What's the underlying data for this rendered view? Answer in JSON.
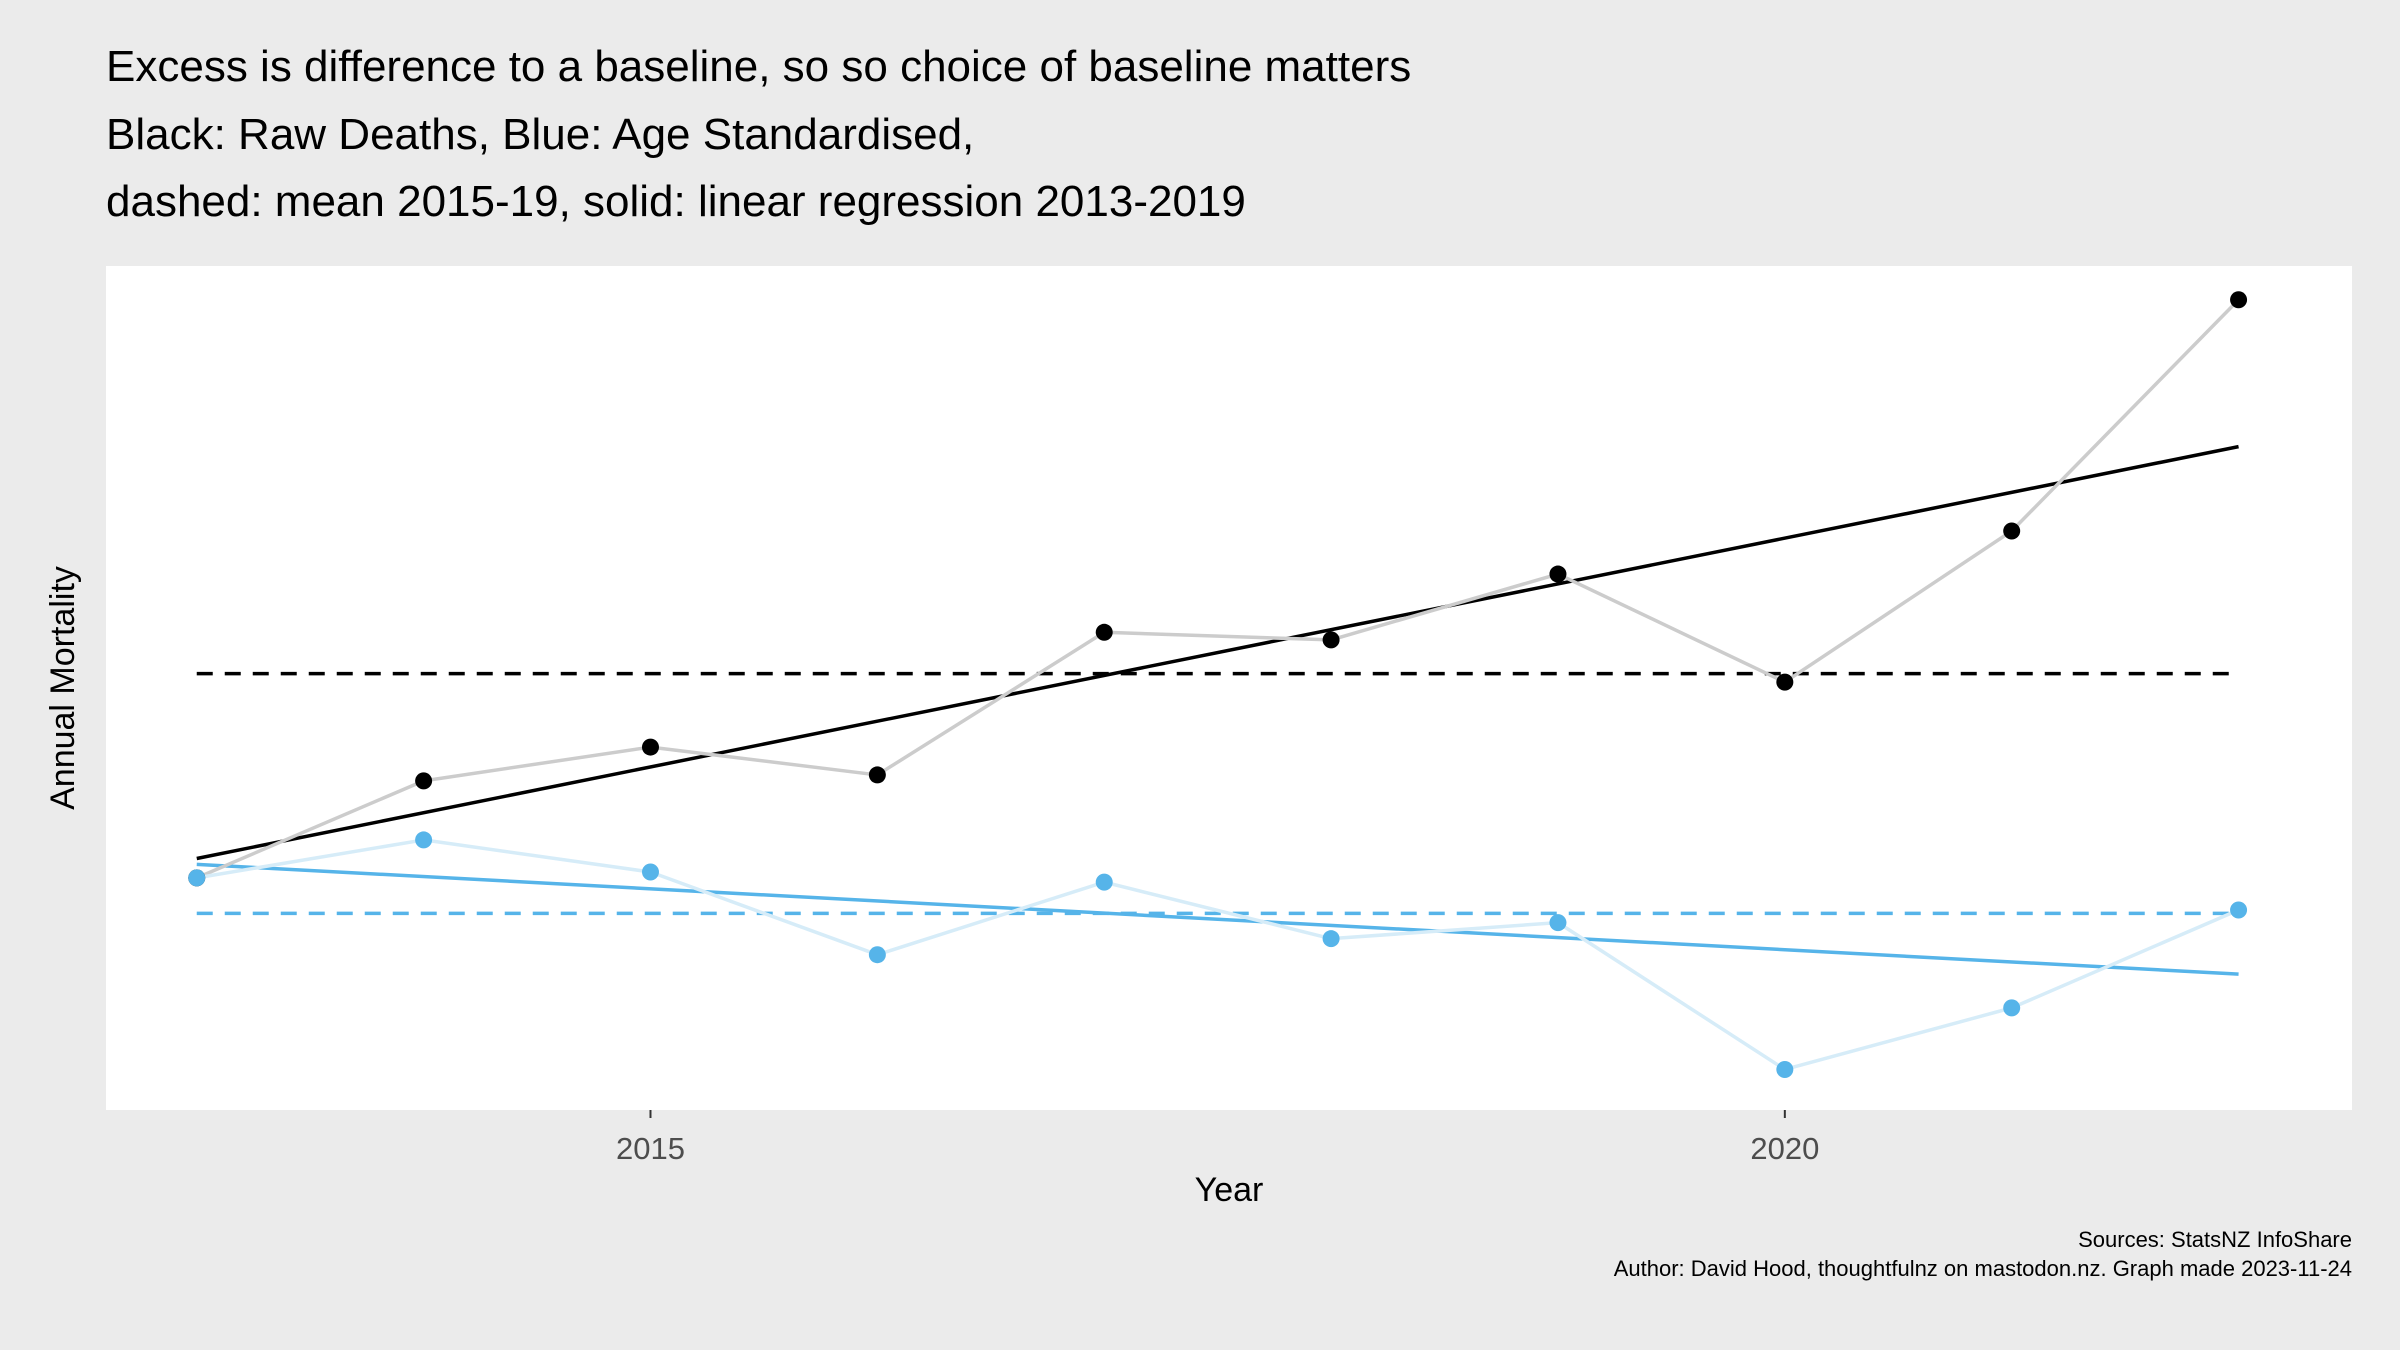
{
  "title_lines": [
    "Excess is difference to a baseline, so so choice of baseline matters",
    "Black: Raw Deaths, Blue: Age Standardised,",
    "dashed: mean 2015-19, solid: linear regression 2013-2019"
  ],
  "caption": {
    "sources": "Sources: StatsNZ InfoShare",
    "author": "Author: David Hood, thoughtfulnz on mastodon.nz. Graph made  2023-11-24"
  },
  "colors": {
    "background": "#ebebeb",
    "panel": "#ffffff",
    "raw_points": "#000000",
    "raw_line": "#cccccc",
    "age_points": "#56b4e9",
    "age_line": "#d6ecf8",
    "raw_baseline": "#000000",
    "age_baseline": "#56b4e9"
  },
  "chart_data": {
    "type": "line",
    "xlabel": "Year",
    "ylabel": "Annual Mortality",
    "x_ticks": [
      2015,
      2020
    ],
    "xlim": [
      2012.6,
      2022.5
    ],
    "ylim": [
      0,
      100
    ],
    "y_tick_labels_shown": false,
    "grid": false,
    "series": [
      {
        "x": [
          2013,
          2014,
          2015,
          2016,
          2017,
          2018,
          2019,
          2020,
          2021,
          2022
        ],
        "y": [
          27.5,
          39.0,
          43.0,
          39.7,
          56.6,
          55.7,
          63.5,
          50.7,
          68.6,
          96.0
        ]
      },
      {
        "x": [
          2013,
          2014,
          2015,
          2016,
          2017,
          2018,
          2019,
          2020,
          2021,
          2022
        ],
        "y": [
          27.5,
          32.0,
          28.2,
          18.4,
          27.0,
          20.3,
          22.2,
          4.8,
          12.1,
          23.7
        ]
      }
    ],
    "baselines": [
      {
        "kind": "mean 2015-19",
        "style": "dashed",
        "y": 51.7,
        "x_range": [
          2013,
          2022
        ]
      },
      {
        "kind": "mean 2015-19",
        "style": "dashed",
        "y": 23.3,
        "x_range": [
          2013,
          2022
        ]
      },
      {
        "kind": "linear regression 2013-2019",
        "style": "solid",
        "x": [
          2013,
          2022
        ],
        "y": [
          29.8,
          78.6
        ]
      },
      {
        "kind": "linear regression 2013-2019",
        "style": "solid",
        "x": [
          2013,
          2022
        ],
        "y": [
          29.1,
          16.1
        ]
      }
    ]
  }
}
